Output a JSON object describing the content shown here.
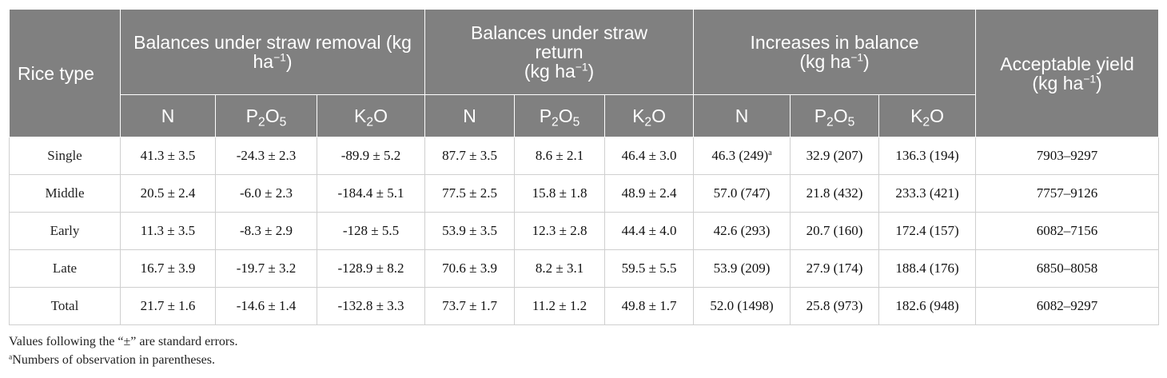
{
  "header": {
    "rice_type": "Rice type",
    "group_removal": "Balances under straw removal (kg ha",
    "group_return_a": "Balances under straw",
    "group_return_b": "return",
    "group_return_c": "(kg ha",
    "group_increase_a": "Increases in balance",
    "group_increase_b": "(kg ha",
    "acceptable_a": "Acceptable yield",
    "acceptable_b": "(kg ha",
    "unit_exp": "−1",
    "unit_close": ")",
    "n_label": "N",
    "p_label_a": "P",
    "p_label_sub1": "2",
    "p_label_b": "O",
    "p_label_sub2": "5",
    "k_label_a": "K",
    "k_label_sub": "2",
    "k_label_b": "O"
  },
  "rows": [
    {
      "type": "Single",
      "rem_n": "41.3 ± 3.5",
      "rem_p": "-24.3 ± 2.3",
      "rem_k": "-89.9 ± 5.2",
      "ret_n": "87.7 ± 3.5",
      "ret_p": "8.6 ± 2.1",
      "ret_k": "46.4 ± 3.0",
      "inc_n": "46.3 (249)",
      "inc_n_sup": "a",
      "inc_p": "32.9 (207)",
      "inc_k": "136.3 (194)",
      "yield": "7903–9297"
    },
    {
      "type": "Middle",
      "rem_n": "20.5 ± 2.4",
      "rem_p": "-6.0 ± 2.3",
      "rem_k": "-184.4 ± 5.1",
      "ret_n": "77.5 ± 2.5",
      "ret_p": "15.8 ± 1.8",
      "ret_k": "48.9 ± 2.4",
      "inc_n": "57.0 (747)",
      "inc_p": "21.8 (432)",
      "inc_k": "233.3 (421)",
      "yield": "7757–9126"
    },
    {
      "type": "Early",
      "rem_n": "11.3 ± 3.5",
      "rem_p": "-8.3 ± 2.9",
      "rem_k": "-128 ± 5.5",
      "ret_n": "53.9 ± 3.5",
      "ret_p": "12.3 ± 2.8",
      "ret_k": "44.4 ± 4.0",
      "inc_n": "42.6 (293)",
      "inc_p": "20.7 (160)",
      "inc_k": "172.4 (157)",
      "yield": "6082–7156"
    },
    {
      "type": "Late",
      "rem_n": "16.7 ± 3.9",
      "rem_p": "-19.7 ± 3.2",
      "rem_k": "-128.9 ± 8.2",
      "ret_n": "70.6 ± 3.9",
      "ret_p": "8.2 ± 3.1",
      "ret_k": "59.5 ± 5.5",
      "inc_n": "53.9 (209)",
      "inc_p": "27.9 (174)",
      "inc_k": "188.4 (176)",
      "yield": "6850–8058"
    },
    {
      "type": "Total",
      "rem_n": "21.7 ± 1.6",
      "rem_p": "-14.6 ± 1.4",
      "rem_k": "-132.8 ± 3.3",
      "ret_n": "73.7 ± 1.7",
      "ret_p": "11.2 ± 1.2",
      "ret_k": "49.8 ± 1.7",
      "inc_n": "52.0 (1498)",
      "inc_p": "25.8 (973)",
      "inc_k": "182.6 (948)",
      "yield": "6082–9297"
    }
  ],
  "notes": {
    "note1": "Values following the “±” are standard errors.",
    "note2_sup": "a",
    "note2": "Numbers of observation in parentheses."
  }
}
